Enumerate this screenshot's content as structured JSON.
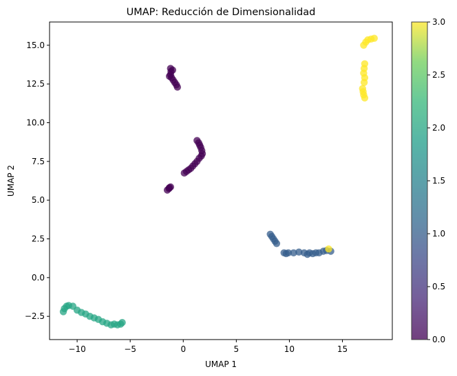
{
  "chart_data": {
    "type": "scatter",
    "title": "UMAP: Reducción de Dimensionalidad",
    "xlabel": "UMAP 1",
    "ylabel": "UMAP 2",
    "xlim": [
      -12.6,
      19.7
    ],
    "ylim": [
      -4.0,
      16.5
    ],
    "xticks": [
      -10,
      -5,
      0,
      5,
      10,
      15
    ],
    "xtick_labels": [
      "−10",
      "−5",
      "0",
      "5",
      "10",
      "15"
    ],
    "yticks": [
      -2.5,
      0.0,
      2.5,
      5.0,
      7.5,
      10.0,
      12.5,
      15.0
    ],
    "ytick_labels": [
      "−2.5",
      "0.0",
      "2.5",
      "5.0",
      "7.5",
      "10.0",
      "12.5",
      "15.0"
    ],
    "grid": false,
    "colormap": "viridis",
    "alpha": 0.75,
    "colorbar": {
      "range": [
        0.0,
        3.0
      ],
      "ticks": [
        0.0,
        0.5,
        1.0,
        1.5,
        2.0,
        2.5,
        3.0
      ],
      "tick_labels": [
        "0.0",
        "0.5",
        "1.0",
        "1.5",
        "2.0",
        "2.5",
        "3.0"
      ]
    },
    "points": [
      {
        "x": -1.2,
        "y": 13.5,
        "c": 0
      },
      {
        "x": -1.15,
        "y": 13.3,
        "c": 0
      },
      {
        "x": -1.2,
        "y": 13.1,
        "c": 0
      },
      {
        "x": -1.3,
        "y": 13.0,
        "c": 0
      },
      {
        "x": -1.1,
        "y": 12.9,
        "c": 0
      },
      {
        "x": -0.95,
        "y": 12.75,
        "c": 0
      },
      {
        "x": -0.8,
        "y": 12.6,
        "c": 0
      },
      {
        "x": -0.65,
        "y": 12.45,
        "c": 0
      },
      {
        "x": -0.55,
        "y": 12.3,
        "c": 0
      },
      {
        "x": -1.0,
        "y": 13.4,
        "c": 0
      },
      {
        "x": 1.3,
        "y": 8.85,
        "c": 0
      },
      {
        "x": 1.45,
        "y": 8.7,
        "c": 0
      },
      {
        "x": 1.55,
        "y": 8.55,
        "c": 0
      },
      {
        "x": 1.65,
        "y": 8.4,
        "c": 0
      },
      {
        "x": 1.75,
        "y": 8.2,
        "c": 0
      },
      {
        "x": 1.8,
        "y": 8.0,
        "c": 0
      },
      {
        "x": 1.7,
        "y": 7.85,
        "c": 0
      },
      {
        "x": 1.5,
        "y": 7.7,
        "c": 0
      },
      {
        "x": 1.3,
        "y": 7.5,
        "c": 0
      },
      {
        "x": 1.1,
        "y": 7.35,
        "c": 0
      },
      {
        "x": 0.9,
        "y": 7.2,
        "c": 0
      },
      {
        "x": 0.7,
        "y": 7.05,
        "c": 0
      },
      {
        "x": 0.5,
        "y": 6.95,
        "c": 0
      },
      {
        "x": 0.3,
        "y": 6.85,
        "c": 0
      },
      {
        "x": 0.1,
        "y": 6.75,
        "c": 0
      },
      {
        "x": -1.2,
        "y": 5.85,
        "c": 0
      },
      {
        "x": -1.35,
        "y": 5.75,
        "c": 0
      },
      {
        "x": -1.5,
        "y": 5.65,
        "c": 0
      },
      {
        "x": -1.3,
        "y": 5.8,
        "c": 0
      },
      {
        "x": 8.2,
        "y": 2.8,
        "c": 1
      },
      {
        "x": 8.35,
        "y": 2.65,
        "c": 1
      },
      {
        "x": 8.5,
        "y": 2.5,
        "c": 1
      },
      {
        "x": 8.65,
        "y": 2.35,
        "c": 1
      },
      {
        "x": 8.8,
        "y": 2.2,
        "c": 1
      },
      {
        "x": 9.5,
        "y": 1.6,
        "c": 1
      },
      {
        "x": 9.7,
        "y": 1.55,
        "c": 1
      },
      {
        "x": 9.9,
        "y": 1.6,
        "c": 1
      },
      {
        "x": 10.4,
        "y": 1.6,
        "c": 1
      },
      {
        "x": 10.9,
        "y": 1.65,
        "c": 1
      },
      {
        "x": 11.4,
        "y": 1.6,
        "c": 1
      },
      {
        "x": 11.7,
        "y": 1.5,
        "c": 1
      },
      {
        "x": 11.9,
        "y": 1.6,
        "c": 1
      },
      {
        "x": 12.2,
        "y": 1.55,
        "c": 1
      },
      {
        "x": 12.5,
        "y": 1.6,
        "c": 1
      },
      {
        "x": 12.8,
        "y": 1.6,
        "c": 1
      },
      {
        "x": 13.2,
        "y": 1.7,
        "c": 1
      },
      {
        "x": 13.5,
        "y": 1.75,
        "c": 1
      },
      {
        "x": 13.9,
        "y": 1.7,
        "c": 1
      },
      {
        "x": -11.3,
        "y": -2.2,
        "c": 2
      },
      {
        "x": -11.2,
        "y": -2.0,
        "c": 2
      },
      {
        "x": -11.0,
        "y": -1.85,
        "c": 2
      },
      {
        "x": -10.8,
        "y": -1.8,
        "c": 2
      },
      {
        "x": -10.4,
        "y": -1.85,
        "c": 2
      },
      {
        "x": -10.0,
        "y": -2.1,
        "c": 2
      },
      {
        "x": -9.6,
        "y": -2.25,
        "c": 2
      },
      {
        "x": -9.2,
        "y": -2.35,
        "c": 2
      },
      {
        "x": -8.8,
        "y": -2.5,
        "c": 2
      },
      {
        "x": -8.4,
        "y": -2.6,
        "c": 2
      },
      {
        "x": -8.0,
        "y": -2.7,
        "c": 2
      },
      {
        "x": -7.6,
        "y": -2.85,
        "c": 2
      },
      {
        "x": -7.2,
        "y": -2.95,
        "c": 2
      },
      {
        "x": -6.8,
        "y": -3.05,
        "c": 2
      },
      {
        "x": -6.5,
        "y": -3.0,
        "c": 2
      },
      {
        "x": -6.2,
        "y": -3.05,
        "c": 2
      },
      {
        "x": -5.9,
        "y": -3.0,
        "c": 2
      },
      {
        "x": -5.75,
        "y": -2.9,
        "c": 2
      },
      {
        "x": 17.0,
        "y": 15.0,
        "c": 3
      },
      {
        "x": 17.2,
        "y": 15.2,
        "c": 3
      },
      {
        "x": 17.4,
        "y": 15.35,
        "c": 3
      },
      {
        "x": 17.7,
        "y": 15.4,
        "c": 3
      },
      {
        "x": 18.0,
        "y": 15.45,
        "c": 3
      },
      {
        "x": 17.1,
        "y": 13.8,
        "c": 3
      },
      {
        "x": 17.05,
        "y": 13.5,
        "c": 3
      },
      {
        "x": 17.0,
        "y": 13.2,
        "c": 3
      },
      {
        "x": 17.1,
        "y": 12.9,
        "c": 3
      },
      {
        "x": 17.05,
        "y": 12.6,
        "c": 3
      },
      {
        "x": 16.9,
        "y": 12.2,
        "c": 3
      },
      {
        "x": 16.95,
        "y": 12.0,
        "c": 3
      },
      {
        "x": 17.0,
        "y": 11.8,
        "c": 3
      },
      {
        "x": 17.1,
        "y": 11.6,
        "c": 3
      },
      {
        "x": 13.7,
        "y": 1.85,
        "c": 3
      }
    ]
  }
}
